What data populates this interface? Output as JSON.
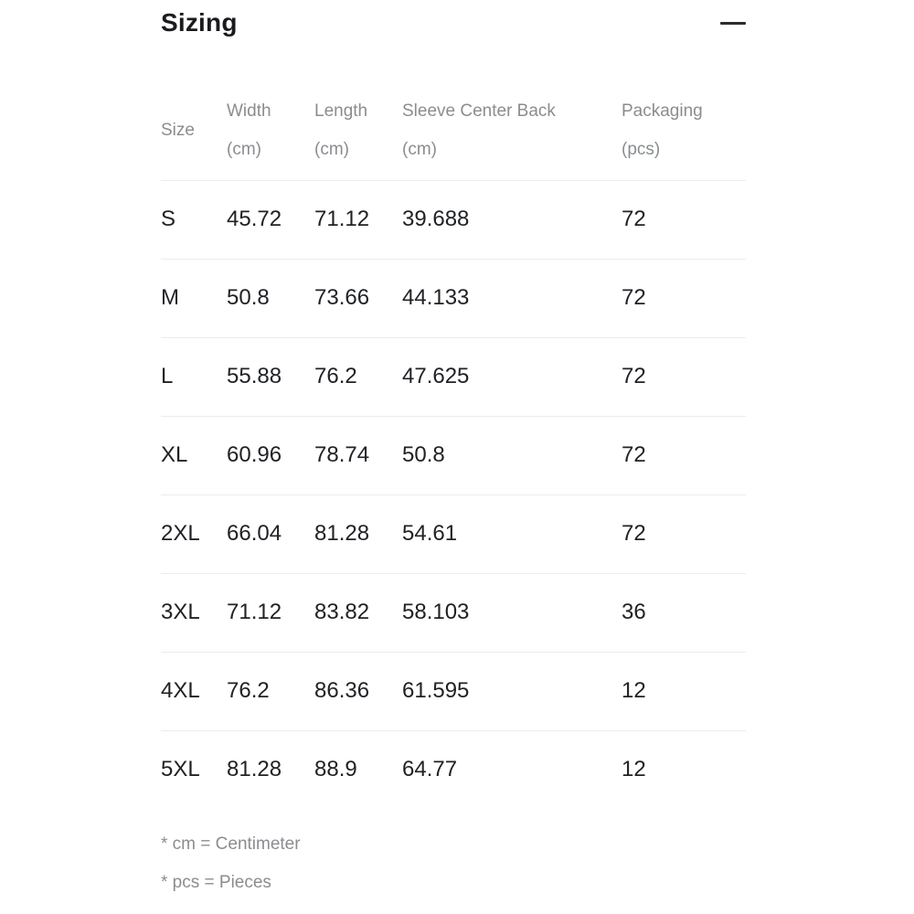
{
  "panel": {
    "title": "Sizing",
    "collapse_icon": "minus"
  },
  "table": {
    "columns": [
      {
        "label": "Size",
        "unit": ""
      },
      {
        "label": "Width",
        "unit": "(cm)"
      },
      {
        "label": "Length",
        "unit": "(cm)"
      },
      {
        "label": "Sleeve Center Back",
        "unit": "(cm)"
      },
      {
        "label": "Packaging",
        "unit": "(pcs)"
      }
    ],
    "rows": [
      {
        "size": "S",
        "width": "45.72",
        "length": "71.12",
        "sleeve_center_back": "39.688",
        "packaging": "72"
      },
      {
        "size": "M",
        "width": "50.8",
        "length": "73.66",
        "sleeve_center_back": "44.133",
        "packaging": "72"
      },
      {
        "size": "L",
        "width": "55.88",
        "length": "76.2",
        "sleeve_center_back": "47.625",
        "packaging": "72"
      },
      {
        "size": "XL",
        "width": "60.96",
        "length": "78.74",
        "sleeve_center_back": "50.8",
        "packaging": "72"
      },
      {
        "size": "2XL",
        "width": "66.04",
        "length": "81.28",
        "sleeve_center_back": "54.61",
        "packaging": "72"
      },
      {
        "size": "3XL",
        "width": "71.12",
        "length": "83.82",
        "sleeve_center_back": "58.103",
        "packaging": "36"
      },
      {
        "size": "4XL",
        "width": "76.2",
        "length": "86.36",
        "sleeve_center_back": "61.595",
        "packaging": "12"
      },
      {
        "size": "5XL",
        "width": "81.28",
        "length": "88.9",
        "sleeve_center_back": "64.77",
        "packaging": "12"
      }
    ]
  },
  "footnotes": [
    "* cm = Centimeter",
    "* pcs = Pieces"
  ],
  "colors": {
    "background": "#ffffff",
    "title_text": "#1a1b1d",
    "data_text": "#202225",
    "muted_text": "#8a8d90",
    "divider": "#ececec",
    "icon": "#2b2c2e"
  }
}
